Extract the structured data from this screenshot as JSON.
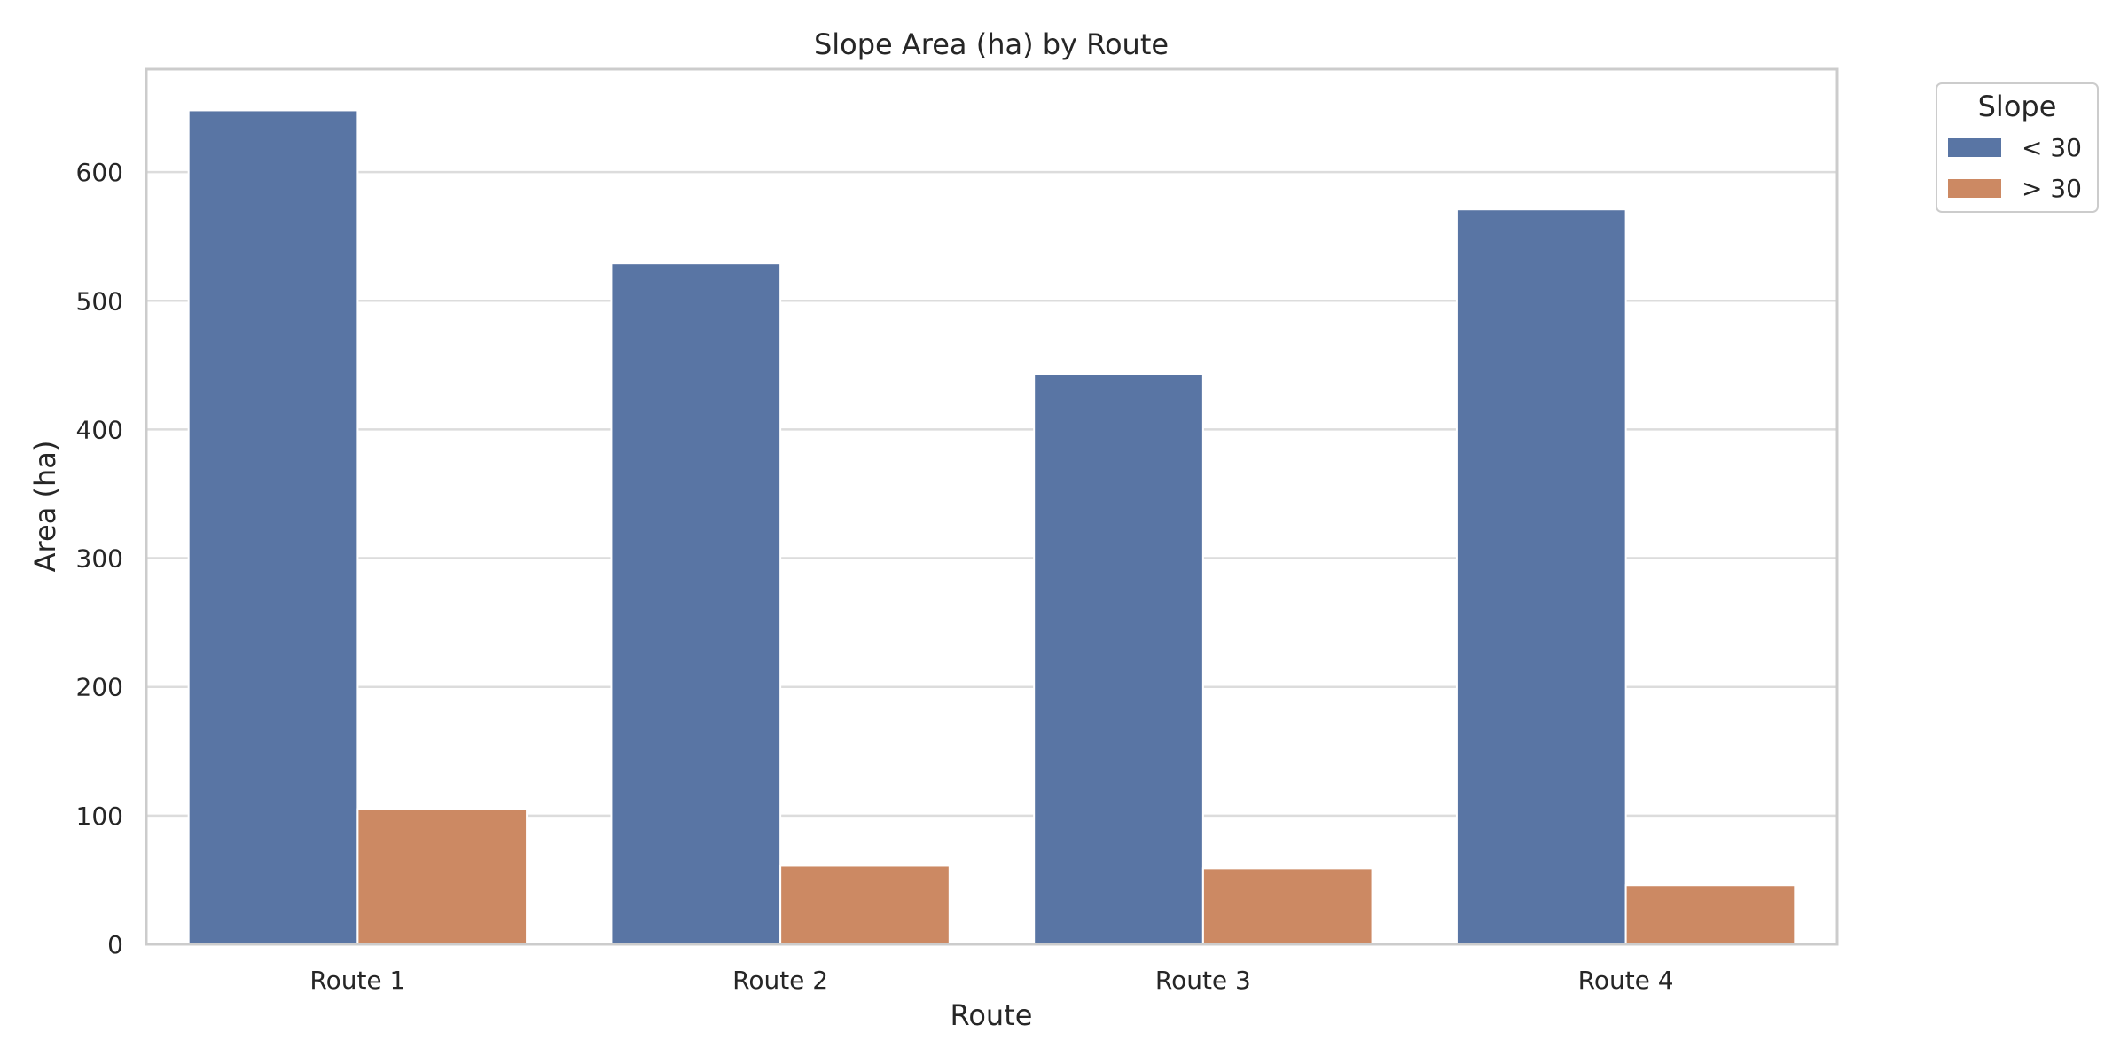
{
  "chart_data": {
    "type": "bar",
    "title": "Slope Area (ha) by Route",
    "xlabel": "Route",
    "ylabel": "Area (ha)",
    "categories": [
      "Route 1",
      "Route 2",
      "Route 3",
      "Route 4"
    ],
    "series": [
      {
        "name": "< 30",
        "color": "#5975a4",
        "values": [
          648,
          529,
          443,
          571
        ]
      },
      {
        "name": "> 30",
        "color": "#cc8963",
        "values": [
          105,
          61,
          59,
          46
        ]
      }
    ],
    "ylim": [
      0,
      680
    ],
    "yticks": [
      "0",
      "100",
      "200",
      "300",
      "400",
      "500",
      "600"
    ],
    "grid": true,
    "legend": {
      "title": "Slope",
      "placement": "outside-top-right"
    }
  }
}
